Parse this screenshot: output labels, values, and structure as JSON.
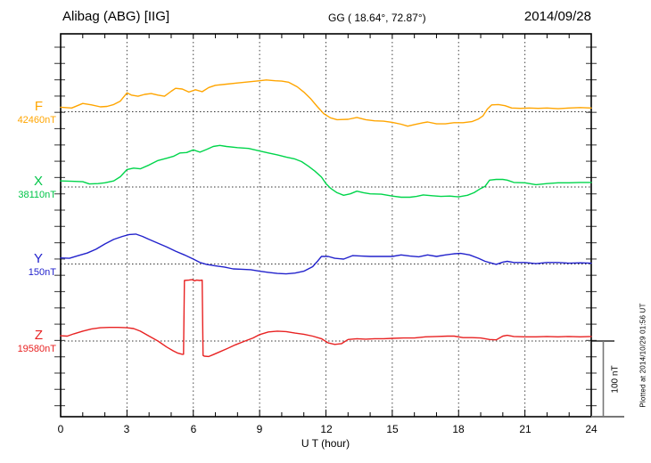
{
  "header": {
    "station": "Alibag (ABG)  [IIG]",
    "coords": "GG ( 18.64°,  72.87°)",
    "date": "2014/09/28"
  },
  "axis": {
    "xlabel": "U T (hour)",
    "xticks": [
      "0",
      "3",
      "6",
      "9",
      "12",
      "15",
      "18",
      "21",
      "24"
    ]
  },
  "scalebar": {
    "label": "100 nT",
    "value_nT": 100
  },
  "footer": {
    "plotted": "Plotted at 2014/10/29 01:56 UT"
  },
  "chart_data": {
    "type": "line",
    "title": "Alibag (ABG) [IIG] magnetogram 2014/09/28",
    "xlabel": "U T (hour)",
    "x_range": [
      0,
      24
    ],
    "x_major_ticks": [
      0,
      3,
      6,
      9,
      12,
      15,
      18,
      21,
      24
    ],
    "grid": "dotted vertical lines every 3 h; dotted horizontal baseline per component",
    "legend_position": "left margin, one label per trace",
    "y_unit": "nT deviation from component baseline",
    "scale_bar_nT": 100,
    "series": [
      {
        "name": "F",
        "baseline_label": "42460nT",
        "baseline_value": 42460,
        "color": "#FFA500",
        "points": [
          [
            0,
            6
          ],
          [
            0.5,
            5
          ],
          [
            1,
            11
          ],
          [
            1.4,
            9
          ],
          [
            1.8,
            6.5
          ],
          [
            2.1,
            7
          ],
          [
            2.4,
            9.5
          ],
          [
            2.7,
            14
          ],
          [
            3,
            25
          ],
          [
            3.2,
            22
          ],
          [
            3.5,
            20.5
          ],
          [
            3.8,
            23
          ],
          [
            4.1,
            24
          ],
          [
            4.4,
            22
          ],
          [
            4.7,
            20.5
          ],
          [
            5,
            27
          ],
          [
            5.2,
            31
          ],
          [
            5.5,
            30
          ],
          [
            5.8,
            26
          ],
          [
            6.1,
            29
          ],
          [
            6.4,
            26.5
          ],
          [
            6.7,
            32
          ],
          [
            7,
            35
          ],
          [
            7.5,
            36.5
          ],
          [
            8,
            38
          ],
          [
            8.5,
            39.5
          ],
          [
            9,
            41
          ],
          [
            9.3,
            42
          ],
          [
            9.7,
            41
          ],
          [
            10,
            40.5
          ],
          [
            10.3,
            39
          ],
          [
            10.7,
            33
          ],
          [
            11,
            26
          ],
          [
            11.3,
            17.5
          ],
          [
            11.6,
            7
          ],
          [
            11.9,
            -2.5
          ],
          [
            12.2,
            -8
          ],
          [
            12.5,
            -10.5
          ],
          [
            13,
            -10
          ],
          [
            13.4,
            -7.5
          ],
          [
            13.8,
            -10.5
          ],
          [
            14.2,
            -12
          ],
          [
            14.6,
            -12.5
          ],
          [
            15,
            -14
          ],
          [
            15.4,
            -16.5
          ],
          [
            15.7,
            -19
          ],
          [
            16,
            -17
          ],
          [
            16.4,
            -14.5
          ],
          [
            16.6,
            -13.5
          ],
          [
            17,
            -16
          ],
          [
            17.4,
            -16
          ],
          [
            17.8,
            -14.5
          ],
          [
            18.2,
            -14.5
          ],
          [
            18.6,
            -13
          ],
          [
            18.9,
            -9.5
          ],
          [
            19.1,
            -5.5
          ],
          [
            19.3,
            3.5
          ],
          [
            19.5,
            9
          ],
          [
            19.8,
            9.5
          ],
          [
            20.1,
            8
          ],
          [
            20.4,
            5
          ],
          [
            20.8,
            4.5
          ],
          [
            21.2,
            5
          ],
          [
            21.6,
            4.5
          ],
          [
            22,
            5
          ],
          [
            22.5,
            4
          ],
          [
            23,
            5
          ],
          [
            23.5,
            5.5
          ],
          [
            24,
            5
          ]
        ]
      },
      {
        "name": "X",
        "baseline_label": "38110nT",
        "baseline_value": 38110,
        "color": "#00D54B",
        "points": [
          [
            0,
            8
          ],
          [
            0.5,
            7.5
          ],
          [
            1,
            7
          ],
          [
            1.3,
            4
          ],
          [
            1.7,
            4.5
          ],
          [
            2,
            5.5
          ],
          [
            2.4,
            8
          ],
          [
            2.7,
            13.5
          ],
          [
            3,
            23
          ],
          [
            3.3,
            25
          ],
          [
            3.6,
            24
          ],
          [
            4,
            29
          ],
          [
            4.4,
            35
          ],
          [
            4.8,
            38
          ],
          [
            5.1,
            40.5
          ],
          [
            5.4,
            45
          ],
          [
            5.7,
            45.5
          ],
          [
            6,
            49
          ],
          [
            6.3,
            46
          ],
          [
            6.6,
            49.5
          ],
          [
            6.9,
            53.5
          ],
          [
            7.2,
            55
          ],
          [
            7.5,
            53.5
          ],
          [
            8,
            52
          ],
          [
            8.5,
            51
          ],
          [
            9,
            47.5
          ],
          [
            9.4,
            45
          ],
          [
            9.8,
            42.5
          ],
          [
            10.2,
            39.5
          ],
          [
            10.6,
            37
          ],
          [
            10.9,
            33.5
          ],
          [
            11.2,
            27.5
          ],
          [
            11.5,
            21
          ],
          [
            11.8,
            13
          ],
          [
            12,
            4.5
          ],
          [
            12.2,
            -1.5
          ],
          [
            12.5,
            -7.5
          ],
          [
            12.8,
            -11
          ],
          [
            13.1,
            -9
          ],
          [
            13.4,
            -5.5
          ],
          [
            13.7,
            -7.5
          ],
          [
            14,
            -9
          ],
          [
            14.5,
            -9.5
          ],
          [
            15,
            -12
          ],
          [
            15.4,
            -13.5
          ],
          [
            15.8,
            -13.5
          ],
          [
            16.1,
            -12.5
          ],
          [
            16.4,
            -10.5
          ],
          [
            16.8,
            -11.5
          ],
          [
            17.2,
            -12.5
          ],
          [
            17.6,
            -12
          ],
          [
            18,
            -13
          ],
          [
            18.4,
            -11
          ],
          [
            18.7,
            -7.5
          ],
          [
            19,
            -2
          ],
          [
            19.2,
            1
          ],
          [
            19.4,
            9
          ],
          [
            19.7,
            10
          ],
          [
            20,
            10
          ],
          [
            20.2,
            9
          ],
          [
            20.5,
            6
          ],
          [
            21,
            5.5
          ],
          [
            21.5,
            3
          ],
          [
            22,
            4.5
          ],
          [
            22.5,
            5.5
          ],
          [
            23,
            5.5
          ],
          [
            23.5,
            6
          ],
          [
            24,
            6
          ]
        ]
      },
      {
        "name": "Y",
        "baseline_label": "150nT",
        "baseline_value": 150,
        "color": "#2222CC",
        "points": [
          [
            0,
            8
          ],
          [
            0.4,
            7.5
          ],
          [
            0.8,
            11
          ],
          [
            1.2,
            14.5
          ],
          [
            1.6,
            19.5
          ],
          [
            2,
            26.5
          ],
          [
            2.4,
            32.5
          ],
          [
            2.8,
            36.5
          ],
          [
            3.1,
            39
          ],
          [
            3.4,
            39.5
          ],
          [
            3.7,
            36.5
          ],
          [
            4,
            32.5
          ],
          [
            4.4,
            27.5
          ],
          [
            4.8,
            22.5
          ],
          [
            5.2,
            17
          ],
          [
            5.6,
            12
          ],
          [
            6,
            6.5
          ],
          [
            6.3,
            2
          ],
          [
            6.6,
            -0.5
          ],
          [
            7,
            -2.5
          ],
          [
            7.4,
            -4
          ],
          [
            7.8,
            -6.5
          ],
          [
            8.2,
            -7
          ],
          [
            8.6,
            -7.5
          ],
          [
            9,
            -9.5
          ],
          [
            9.4,
            -11
          ],
          [
            9.8,
            -12.5
          ],
          [
            10.2,
            -13
          ],
          [
            10.6,
            -12
          ],
          [
            11,
            -9.5
          ],
          [
            11.4,
            -3.5
          ],
          [
            11.6,
            3
          ],
          [
            11.8,
            10
          ],
          [
            12.1,
            10
          ],
          [
            12.4,
            7.5
          ],
          [
            12.8,
            6.5
          ],
          [
            13.2,
            11
          ],
          [
            13.6,
            10.5
          ],
          [
            14,
            10
          ],
          [
            14.5,
            10
          ],
          [
            15,
            10
          ],
          [
            15.4,
            12
          ],
          [
            15.8,
            10.5
          ],
          [
            16.2,
            9.5
          ],
          [
            16.6,
            12
          ],
          [
            17,
            10
          ],
          [
            17.4,
            12
          ],
          [
            17.8,
            13.5
          ],
          [
            18.1,
            14
          ],
          [
            18.5,
            12
          ],
          [
            18.9,
            7.5
          ],
          [
            19.2,
            3.5
          ],
          [
            19.5,
            1
          ],
          [
            19.7,
            -0.5
          ],
          [
            20,
            2.5
          ],
          [
            20.2,
            3.5
          ],
          [
            20.5,
            2
          ],
          [
            21,
            2
          ],
          [
            21.5,
            0.5
          ],
          [
            22,
            2
          ],
          [
            22.5,
            2
          ],
          [
            23,
            1
          ],
          [
            23.5,
            1.5
          ],
          [
            24,
            1
          ]
        ]
      },
      {
        "name": "Z",
        "baseline_label": "19580nT",
        "baseline_value": 19580,
        "color": "#E82222",
        "points": [
          [
            0,
            7
          ],
          [
            0.3,
            6.5
          ],
          [
            0.6,
            9.5
          ],
          [
            1,
            13
          ],
          [
            1.4,
            16
          ],
          [
            1.8,
            17.5
          ],
          [
            2.2,
            18
          ],
          [
            2.6,
            18
          ],
          [
            3,
            17.5
          ],
          [
            3.3,
            16.5
          ],
          [
            3.6,
            13
          ],
          [
            4,
            6.5
          ],
          [
            4.4,
            0
          ],
          [
            4.8,
            -8
          ],
          [
            5.1,
            -13
          ],
          [
            5.3,
            -16
          ],
          [
            5.5,
            -17.5
          ],
          [
            5.56,
            -17.5
          ],
          [
            5.6,
            80
          ],
          [
            5.8,
            80.5
          ],
          [
            5.95,
            81
          ],
          [
            6.05,
            79.5
          ],
          [
            6.15,
            80.5
          ],
          [
            6.3,
            80
          ],
          [
            6.4,
            80.5
          ],
          [
            6.44,
            -19
          ],
          [
            6.5,
            -20
          ],
          [
            6.7,
            -20.5
          ],
          [
            6.9,
            -18
          ],
          [
            7.1,
            -15.5
          ],
          [
            7.5,
            -10.5
          ],
          [
            7.9,
            -5
          ],
          [
            8.3,
            -0.5
          ],
          [
            8.7,
            4
          ],
          [
            9,
            8.5
          ],
          [
            9.4,
            12
          ],
          [
            9.8,
            13
          ],
          [
            10.2,
            12.5
          ],
          [
            10.6,
            10.5
          ],
          [
            11,
            9
          ],
          [
            11.4,
            6.5
          ],
          [
            11.8,
            3
          ],
          [
            12.1,
            -2.5
          ],
          [
            12.4,
            -4.5
          ],
          [
            12.7,
            -3.5
          ],
          [
            13,
            2
          ],
          [
            13.4,
            3
          ],
          [
            13.8,
            2.5
          ],
          [
            14.2,
            3
          ],
          [
            14.6,
            3
          ],
          [
            15,
            3.5
          ],
          [
            15.5,
            4
          ],
          [
            16,
            4
          ],
          [
            16.5,
            5.5
          ],
          [
            17,
            6
          ],
          [
            17.5,
            6.5
          ],
          [
            17.8,
            6.5
          ],
          [
            18.2,
            4.5
          ],
          [
            18.6,
            4.5
          ],
          [
            19,
            4
          ],
          [
            19.4,
            2
          ],
          [
            19.7,
            1.5
          ],
          [
            20,
            6.5
          ],
          [
            20.2,
            7.5
          ],
          [
            20.5,
            6
          ],
          [
            21,
            5.5
          ],
          [
            21.5,
            5.5
          ],
          [
            22,
            6
          ],
          [
            22.5,
            5.5
          ],
          [
            23,
            6
          ],
          [
            23.5,
            5.5
          ],
          [
            24,
            6
          ]
        ]
      }
    ]
  }
}
